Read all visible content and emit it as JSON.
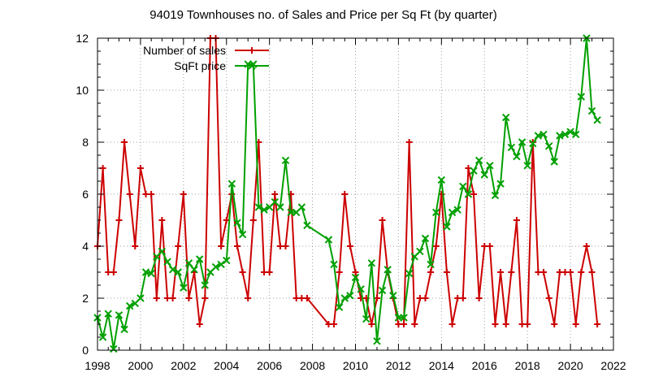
{
  "chart_data": {
    "type": "line",
    "title": "94019 Townhouses no. of Sales and Price per Sq Ft (by quarter)",
    "xlabel": "",
    "ylabel": "",
    "xlim": [
      1998,
      2022
    ],
    "ylim": [
      0,
      12
    ],
    "x_ticks": [
      "1998",
      "2000",
      "2002",
      "2004",
      "2006",
      "2008",
      "2010",
      "2012",
      "2014",
      "2016",
      "2018",
      "2020",
      "2022"
    ],
    "y_ticks": [
      "0",
      "2",
      "4",
      "6",
      "8",
      "10",
      "12"
    ],
    "grid": true,
    "legend_position": "top-left",
    "series": [
      {
        "name": "Number of sales",
        "color": "#cc0000",
        "marker": "plus",
        "points": [
          [
            1998.0,
            4
          ],
          [
            1998.25,
            7
          ],
          [
            1998.5,
            3
          ],
          [
            1998.75,
            3
          ],
          [
            1999.0,
            5
          ],
          [
            1999.25,
            8
          ],
          [
            1999.5,
            6
          ],
          [
            1999.75,
            4
          ],
          [
            2000.0,
            7
          ],
          [
            2000.25,
            6
          ],
          [
            2000.5,
            6
          ],
          [
            2000.75,
            2
          ],
          [
            2001.0,
            5
          ],
          [
            2001.25,
            2
          ],
          [
            2001.5,
            2
          ],
          [
            2001.75,
            4
          ],
          [
            2002.0,
            6
          ],
          [
            2002.25,
            2
          ],
          [
            2002.5,
            3
          ],
          [
            2002.75,
            1
          ],
          [
            2003.0,
            2
          ],
          [
            2003.25,
            12
          ],
          [
            2003.5,
            12
          ],
          [
            2003.75,
            4
          ],
          [
            2004.0,
            5
          ],
          [
            2004.25,
            6
          ],
          [
            2004.5,
            4
          ],
          [
            2004.75,
            3
          ],
          [
            2005.0,
            2
          ],
          [
            2005.25,
            5
          ],
          [
            2005.5,
            8
          ],
          [
            2005.75,
            3
          ],
          [
            2006.0,
            3
          ],
          [
            2006.25,
            6
          ],
          [
            2006.5,
            4
          ],
          [
            2006.75,
            4
          ],
          [
            2007.0,
            6
          ],
          [
            2007.25,
            2
          ],
          [
            2007.5,
            2
          ],
          [
            2007.75,
            2
          ],
          [
            2008.75,
            1
          ],
          [
            2009.0,
            1
          ],
          [
            2009.25,
            3
          ],
          [
            2009.5,
            6
          ],
          [
            2009.75,
            4
          ],
          [
            2010.0,
            3
          ],
          [
            2010.25,
            2
          ],
          [
            2010.5,
            2
          ],
          [
            2010.75,
            1
          ],
          [
            2011.0,
            2
          ],
          [
            2011.25,
            5
          ],
          [
            2011.5,
            3
          ],
          [
            2011.75,
            2
          ],
          [
            2012.0,
            1
          ],
          [
            2012.25,
            1
          ],
          [
            2012.5,
            8
          ],
          [
            2012.75,
            1
          ],
          [
            2013.0,
            2
          ],
          [
            2013.25,
            2
          ],
          [
            2013.5,
            3
          ],
          [
            2013.75,
            4
          ],
          [
            2014.0,
            6
          ],
          [
            2014.25,
            3
          ],
          [
            2014.5,
            1
          ],
          [
            2014.75,
            2
          ],
          [
            2015.0,
            2
          ],
          [
            2015.25,
            7
          ],
          [
            2015.5,
            6
          ],
          [
            2015.75,
            2
          ],
          [
            2016.0,
            4
          ],
          [
            2016.25,
            4
          ],
          [
            2016.5,
            1
          ],
          [
            2016.75,
            3
          ],
          [
            2017.0,
            1
          ],
          [
            2017.25,
            3
          ],
          [
            2017.5,
            5
          ],
          [
            2017.75,
            1
          ],
          [
            2018.0,
            1
          ],
          [
            2018.25,
            8
          ],
          [
            2018.5,
            3
          ],
          [
            2018.75,
            3
          ],
          [
            2019.0,
            2
          ],
          [
            2019.25,
            1
          ],
          [
            2019.5,
            3
          ],
          [
            2019.75,
            3
          ],
          [
            2020.0,
            3
          ],
          [
            2020.25,
            1
          ],
          [
            2020.5,
            3
          ],
          [
            2020.75,
            4
          ],
          [
            2021.0,
            3
          ],
          [
            2021.25,
            1
          ]
        ]
      },
      {
        "name": "SqFt price",
        "color": "#00a000",
        "marker": "cross",
        "points": [
          [
            1998.0,
            1.25
          ],
          [
            1998.25,
            0.5
          ],
          [
            1998.5,
            1.4
          ],
          [
            1998.75,
            0.05
          ],
          [
            1999.0,
            1.35
          ],
          [
            1999.25,
            0.8
          ],
          [
            1999.5,
            1.7
          ],
          [
            1999.75,
            1.8
          ],
          [
            2000.0,
            2.0
          ],
          [
            2000.25,
            3.0
          ],
          [
            2000.5,
            2.95
          ],
          [
            2000.75,
            3.6
          ],
          [
            2001.0,
            3.8
          ],
          [
            2001.25,
            3.4
          ],
          [
            2001.5,
            3.1
          ],
          [
            2001.75,
            3.0
          ],
          [
            2002.0,
            2.4
          ],
          [
            2002.25,
            3.35
          ],
          [
            2002.5,
            3.1
          ],
          [
            2002.75,
            3.5
          ],
          [
            2003.0,
            2.5
          ],
          [
            2003.25,
            3.0
          ],
          [
            2003.5,
            3.2
          ],
          [
            2003.75,
            3.3
          ],
          [
            2004.0,
            3.45
          ],
          [
            2004.25,
            6.4
          ],
          [
            2004.5,
            4.9
          ],
          [
            2004.75,
            4.45
          ],
          [
            2005.0,
            11.0
          ],
          [
            2005.25,
            11.0
          ],
          [
            2005.5,
            5.5
          ],
          [
            2005.75,
            5.4
          ],
          [
            2006.0,
            5.5
          ],
          [
            2006.25,
            5.7
          ],
          [
            2006.5,
            5.5
          ],
          [
            2006.75,
            7.3
          ],
          [
            2007.0,
            5.3
          ],
          [
            2007.25,
            5.3
          ],
          [
            2007.5,
            5.5
          ],
          [
            2007.75,
            4.8
          ],
          [
            2008.75,
            4.25
          ],
          [
            2009.0,
            3.3
          ],
          [
            2009.25,
            1.65
          ],
          [
            2009.5,
            2.0
          ],
          [
            2009.75,
            2.1
          ],
          [
            2010.0,
            2.8
          ],
          [
            2010.25,
            2.35
          ],
          [
            2010.5,
            1.2
          ],
          [
            2010.75,
            3.35
          ],
          [
            2011.0,
            0.35
          ],
          [
            2011.25,
            2.3
          ],
          [
            2011.5,
            3.1
          ],
          [
            2011.75,
            2.1
          ],
          [
            2012.0,
            1.25
          ],
          [
            2012.25,
            1.25
          ],
          [
            2012.5,
            2.95
          ],
          [
            2012.75,
            3.6
          ],
          [
            2013.0,
            3.8
          ],
          [
            2013.25,
            4.3
          ],
          [
            2013.5,
            3.3
          ],
          [
            2013.75,
            5.3
          ],
          [
            2014.0,
            6.55
          ],
          [
            2014.25,
            4.75
          ],
          [
            2014.5,
            5.3
          ],
          [
            2014.75,
            5.4
          ],
          [
            2015.0,
            6.3
          ],
          [
            2015.25,
            6.0
          ],
          [
            2015.5,
            6.9
          ],
          [
            2015.75,
            7.3
          ],
          [
            2016.0,
            6.75
          ],
          [
            2016.25,
            7.1
          ],
          [
            2016.5,
            5.95
          ],
          [
            2016.75,
            6.4
          ],
          [
            2017.0,
            8.95
          ],
          [
            2017.25,
            7.8
          ],
          [
            2017.5,
            7.45
          ],
          [
            2017.75,
            8.0
          ],
          [
            2018.0,
            7.1
          ],
          [
            2018.25,
            7.95
          ],
          [
            2018.5,
            8.25
          ],
          [
            2018.75,
            8.3
          ],
          [
            2019.0,
            7.85
          ],
          [
            2019.25,
            7.25
          ],
          [
            2019.5,
            8.25
          ],
          [
            2019.75,
            8.3
          ],
          [
            2020.0,
            8.4
          ],
          [
            2020.25,
            8.3
          ],
          [
            2020.5,
            9.75
          ],
          [
            2020.75,
            12.0
          ],
          [
            2021.0,
            9.2
          ],
          [
            2021.25,
            8.85
          ]
        ]
      }
    ]
  }
}
